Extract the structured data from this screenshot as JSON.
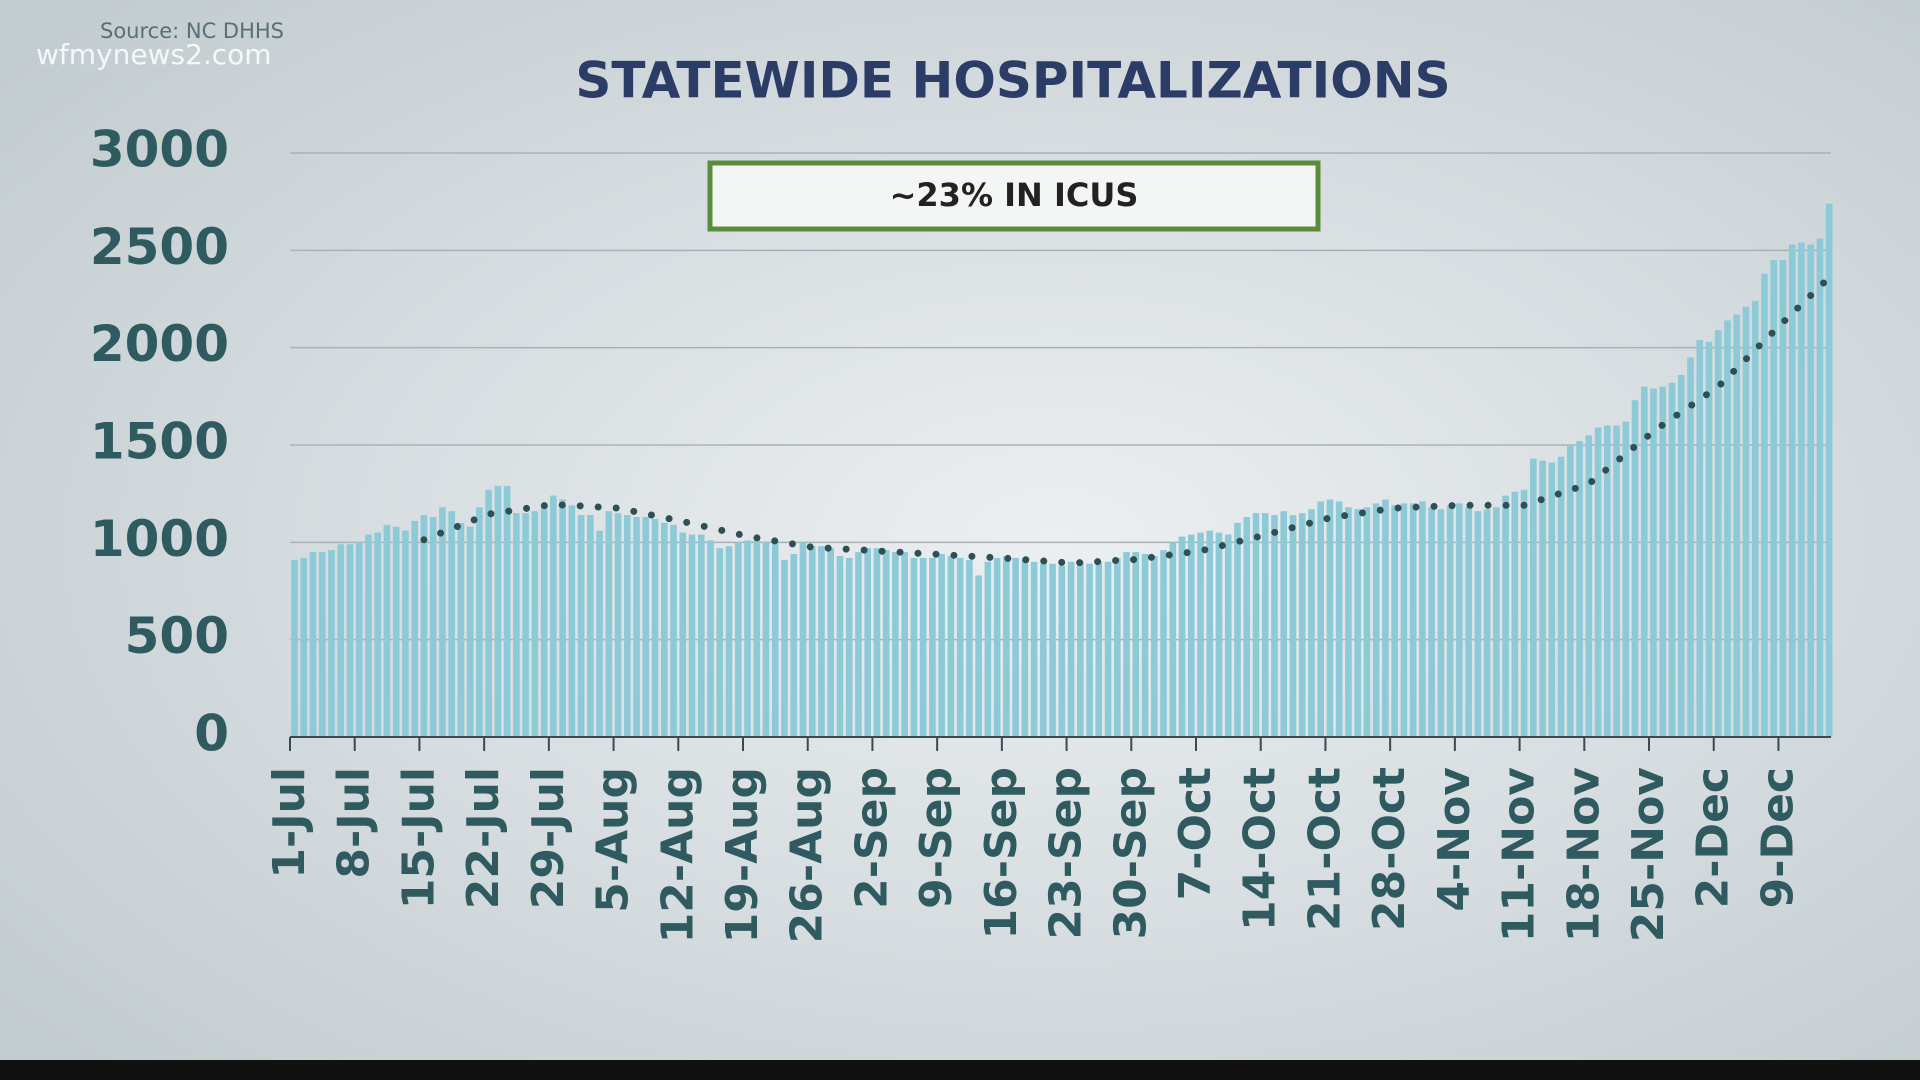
{
  "source": "Source: NC DHHS",
  "watermark": "wfmynews2.com",
  "chart_data": {
    "type": "bar",
    "title": "STATEWIDE HOSPITALIZATIONS",
    "annotation": "~23% IN ICUS",
    "categories": [
      "1-Jul",
      null,
      null,
      null,
      null,
      null,
      null,
      "8-Jul",
      null,
      null,
      null,
      null,
      null,
      null,
      "15-Jul",
      null,
      null,
      null,
      null,
      null,
      null,
      "22-Jul",
      null,
      null,
      null,
      null,
      null,
      null,
      "29-Jul",
      null,
      null,
      null,
      null,
      null,
      null,
      "5-Aug",
      null,
      null,
      null,
      null,
      null,
      null,
      "12-Aug",
      null,
      null,
      null,
      null,
      null,
      null,
      "19-Aug",
      null,
      null,
      null,
      null,
      null,
      null,
      "26-Aug",
      null,
      null,
      null,
      null,
      null,
      null,
      "2-Sep",
      null,
      null,
      null,
      null,
      null,
      null,
      "9-Sep",
      null,
      null,
      null,
      null,
      null,
      null,
      "16-Sep",
      null,
      null,
      null,
      null,
      null,
      null,
      "23-Sep",
      null,
      null,
      null,
      null,
      null,
      null,
      "30-Sep",
      null,
      null,
      null,
      null,
      null,
      null,
      "7-Oct",
      null,
      null,
      null,
      null,
      null,
      null,
      "14-Oct",
      null,
      null,
      null,
      null,
      null,
      null,
      "21-Oct",
      null,
      null,
      null,
      null,
      null,
      null,
      "28-Oct",
      null,
      null,
      null,
      null,
      null,
      null,
      "4-Nov",
      null,
      null,
      null,
      null,
      null,
      null,
      "11-Nov",
      null,
      null,
      null,
      null,
      null,
      null,
      "18-Nov",
      null,
      null,
      null,
      null,
      null,
      null,
      "25-Nov",
      null,
      null,
      null,
      null,
      null,
      null,
      "2-Dec",
      null,
      null,
      null,
      null,
      null,
      null,
      "9-Dec",
      null,
      null,
      null,
      null,
      null
    ],
    "series": [
      {
        "color": "#8ccad8",
        "values": [
          910,
          920,
          950,
          950,
          960,
          990,
          990,
          1000,
          1040,
          1050,
          1090,
          1080,
          1060,
          1110,
          1140,
          1130,
          1180,
          1160,
          1100,
          1080,
          1180,
          1270,
          1290,
          1290,
          1150,
          1150,
          1160,
          1200,
          1240,
          1220,
          1190,
          1140,
          1140,
          1060,
          1160,
          1150,
          1140,
          1130,
          1130,
          1120,
          1100,
          1090,
          1050,
          1040,
          1040,
          1010,
          970,
          980,
          1000,
          1010,
          1010,
          1000,
          1010,
          910,
          940,
          1000,
          980,
          980,
          970,
          930,
          920,
          950,
          970,
          970,
          960,
          950,
          950,
          920,
          920,
          920,
          940,
          930,
          920,
          910,
          830,
          900,
          920,
          930,
          920,
          910,
          900,
          890,
          890,
          880,
          900,
          900,
          890,
          900,
          900,
          920,
          950,
          950,
          940,
          930,
          960,
          1000,
          1030,
          1040,
          1050,
          1060,
          1050,
          1040,
          1100,
          1130,
          1150,
          1150,
          1140,
          1160,
          1140,
          1150,
          1170,
          1210,
          1220,
          1210,
          1180,
          1170,
          1180,
          1200,
          1220,
          1190,
          1200,
          1200,
          1210,
          1180,
          1170,
          1190,
          1200,
          1180,
          1160,
          1170,
          1180,
          1240,
          1260,
          1270,
          1430,
          1420,
          1410,
          1440,
          1500,
          1520,
          1550,
          1590,
          1600,
          1600,
          1620,
          1730,
          1800,
          1790,
          1800,
          1820,
          1860,
          1950,
          2040,
          2030,
          2090,
          2140,
          2170,
          2210,
          2240,
          2380,
          2450,
          2450,
          2530,
          2540,
          2530,
          2560,
          2740
        ]
      },
      {
        "color": "#2f4f55",
        "style": "dotted",
        "values": [
          null,
          null,
          null,
          null,
          null,
          null,
          null,
          null,
          null,
          null,
          null,
          null,
          null,
          null,
          1013,
          1032,
          1051,
          1070,
          1088,
          1107,
          1126,
          1145,
          1152,
          1159,
          1166,
          1174,
          1181,
          1188,
          1195,
          1192,
          1190,
          1187,
          1184,
          1181,
          1179,
          1176,
          1166,
          1156,
          1146,
          1137,
          1127,
          1117,
          1107,
          1096,
          1085,
          1075,
          1064,
          1053,
          1042,
          1031,
          1023,
          1015,
          1007,
          999,
          991,
          983,
          975,
          972,
          970,
          967,
          964,
          961,
          959,
          956,
          953,
          951,
          948,
          945,
          942,
          940,
          937,
          934,
          932,
          929,
          926,
          923,
          921,
          918,
          914,
          911,
          907,
          904,
          900,
          897,
          893,
          896,
          898,
          901,
          904,
          907,
          909,
          912,
          918,
          925,
          931,
          937,
          943,
          950,
          956,
          968,
          979,
          991,
          1003,
          1014,
          1026,
          1038,
          1051,
          1063,
          1076,
          1088,
          1101,
          1113,
          1126,
          1133,
          1140,
          1147,
          1155,
          1162,
          1169,
          1176,
          1178,
          1180,
          1182,
          1184,
          1186,
          1188,
          1190,
          1190,
          1190,
          1190,
          1190,
          1190,
          1190,
          1190,
          1206,
          1221,
          1237,
          1253,
          1269,
          1284,
          1300,
          1339,
          1377,
          1416,
          1454,
          1493,
          1531,
          1570,
          1603,
          1636,
          1669,
          1701,
          1734,
          1767,
          1800,
          1847,
          1894,
          1941,
          1989,
          2036,
          2083,
          2130,
          2176,
          2222,
          2268,
          2314,
          2360
        ]
      }
    ],
    "ylim": [
      0,
      3000
    ],
    "yticks": [
      0,
      500,
      1000,
      1500,
      2000,
      2500,
      3000
    ],
    "grid": true
  }
}
